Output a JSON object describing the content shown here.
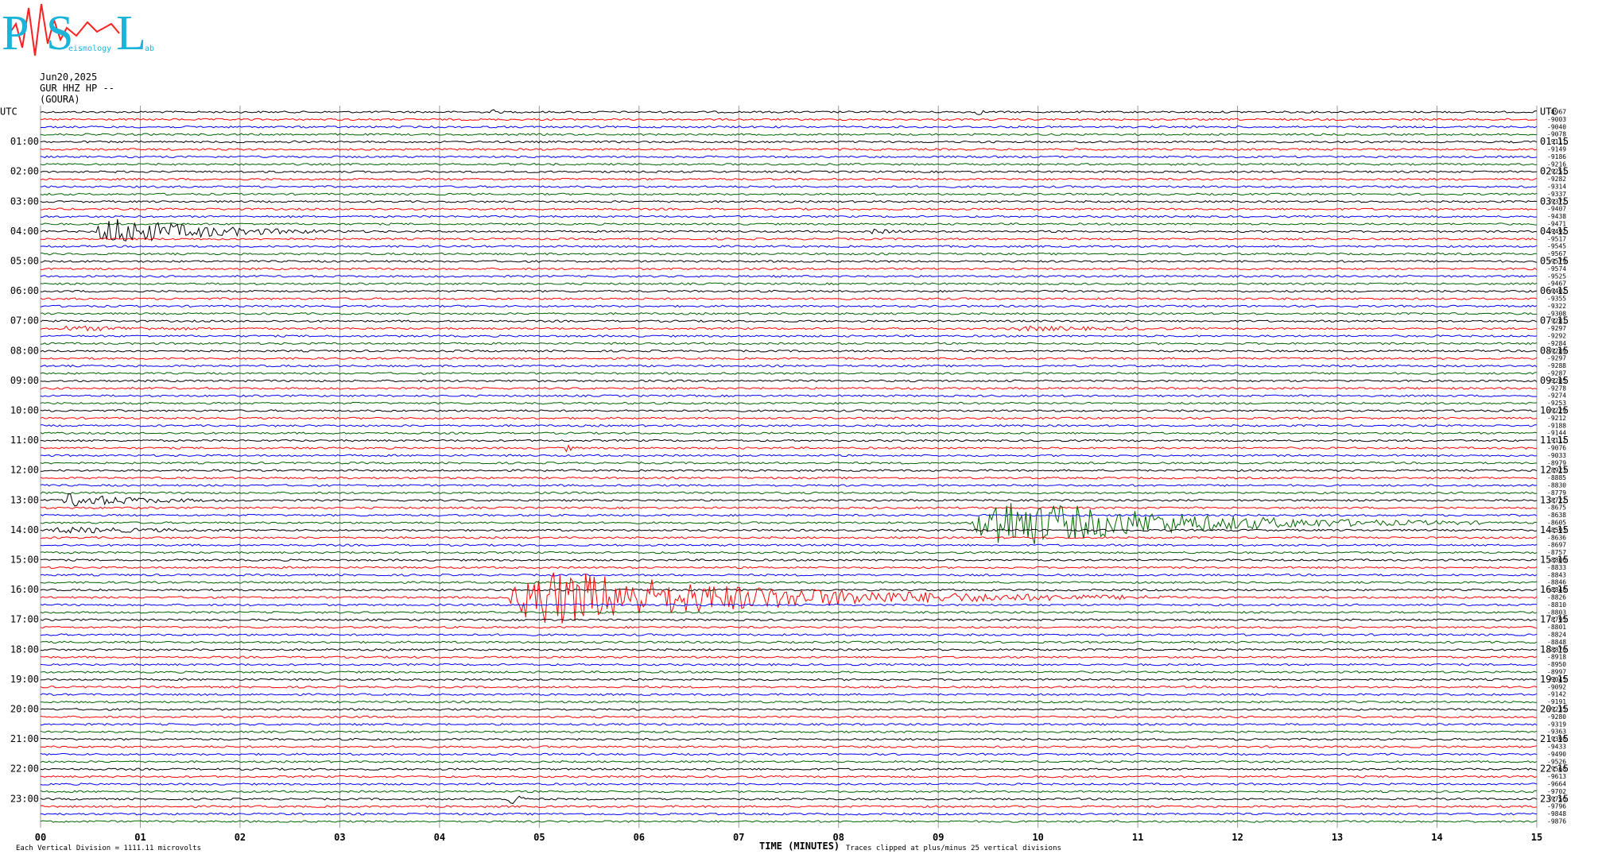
{
  "header": {
    "logo_letters": [
      "P",
      "S",
      "L"
    ],
    "logo_words": [
      "eismology",
      "ab"
    ],
    "date": "Jun20,2025",
    "station": "GUR HHZ HP --",
    "site": "(GOURA)"
  },
  "left_labels": [
    "UTC",
    "01:00",
    "02:00",
    "03:00",
    "04:00",
    "05:00",
    "06:00",
    "07:00",
    "08:00",
    "09:00",
    "10:00",
    "11:00",
    "12:00",
    "13:00",
    "14:00",
    "15:00",
    "16:00",
    "17:00",
    "18:00",
    "19:00",
    "20:00",
    "21:00",
    "22:00",
    "23:00"
  ],
  "right_labels": [
    "UTC",
    "01:15",
    "02:15",
    "03:15",
    "04:15",
    "05:15",
    "06:15",
    "07:15",
    "08:15",
    "09:15",
    "10:15",
    "11:15",
    "12:15",
    "13:15",
    "14:15",
    "15:15",
    "16:15",
    "17:15",
    "18:15",
    "19:15",
    "20:15",
    "21:15",
    "22:15",
    "23:15"
  ],
  "offsets": [
    -8967,
    -9003,
    -9040,
    -9078,
    -9111,
    -9149,
    -9186,
    -9216,
    -9251,
    -9282,
    -9314,
    -9337,
    -9372,
    -9407,
    -9438,
    -9471,
    -9492,
    -9517,
    -9545,
    -9567,
    -9579,
    -9574,
    -9525,
    -9467,
    -9402,
    -9355,
    -9322,
    -9308,
    -9281,
    -9297,
    -9292,
    -9284,
    -9289,
    -9297,
    -9288,
    -9287,
    -9285,
    -9278,
    -9274,
    -9253,
    -9229,
    -9212,
    -9188,
    -9144,
    -9112,
    -9076,
    -9033,
    -8979,
    -8923,
    -8885,
    -8830,
    -8779,
    -8722,
    -8675,
    -8638,
    -8605,
    -8593,
    -8636,
    -8697,
    -8757,
    -8806,
    -8833,
    -8843,
    -8846,
    -8848,
    -8826,
    -8810,
    -8803,
    -8795,
    -8801,
    -8824,
    -8848,
    -8870,
    -8918,
    -8950,
    -8997,
    -9045,
    -9092,
    -9142,
    -9191,
    -9235,
    -9280,
    -9319,
    -9363,
    -9398,
    -9433,
    -9490,
    -9526,
    -9568,
    -9613,
    -9664,
    -9702,
    -9756,
    -9796,
    -9848,
    -9876
  ],
  "trace_colors": [
    "#000000",
    "#ff0000",
    "#0000ff",
    "#006400"
  ],
  "x_axis": {
    "ticks": [
      "00",
      "01",
      "02",
      "03",
      "04",
      "05",
      "06",
      "07",
      "08",
      "09",
      "10",
      "11",
      "12",
      "13",
      "14",
      "15"
    ],
    "label": "TIME (MINUTES)"
  },
  "footer": {
    "scale_note": "Each Vertical Division = 1111.11 microvolts",
    "clip_note": "Traces clipped at plus/minus 25 vertical divisions"
  }
}
